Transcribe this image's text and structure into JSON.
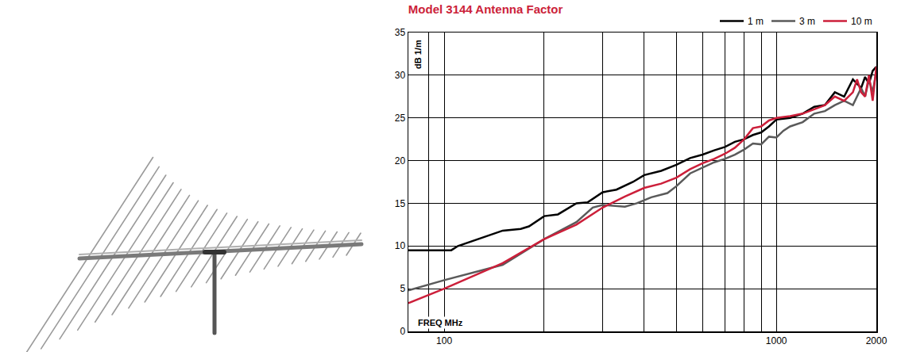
{
  "chart_data": {
    "type": "line",
    "title": "Model 3144 Antenna Factor",
    "y_label": "dB 1/m",
    "x_label": "FREQ MHz",
    "log": "x",
    "grid": true,
    "legend": "top right",
    "xlim": [
      78,
      2000
    ],
    "xticks": [
      100,
      1000,
      2000
    ],
    "xminor_ticks": [
      90,
      200,
      300,
      400,
      500,
      600,
      700,
      800,
      900
    ],
    "ylim": [
      0,
      35
    ],
    "yticks": [
      0,
      5,
      10,
      15,
      20,
      25,
      30,
      35
    ],
    "series": [
      {
        "name": "1 m",
        "color": "#000000",
        "x": [
          78,
          90,
          105,
          110,
          130,
          150,
          170,
          180,
          200,
          220,
          250,
          270,
          300,
          330,
          370,
          400,
          450,
          500,
          550,
          600,
          650,
          700,
          750,
          800,
          850,
          900,
          950,
          1000,
          1100,
          1200,
          1300,
          1400,
          1500,
          1600,
          1700,
          1800,
          1850,
          1900,
          1950,
          2000
        ],
        "values": [
          9.5,
          9.5,
          9.5,
          10,
          11,
          11.8,
          12,
          12.3,
          13.5,
          13.7,
          15,
          15.1,
          16.3,
          16.6,
          17.5,
          18.3,
          18.8,
          19.5,
          20.3,
          20.7,
          21.2,
          21.6,
          22.2,
          22.5,
          23,
          23.3,
          24,
          24.8,
          25,
          25.5,
          26.3,
          26.5,
          28,
          27.5,
          29.5,
          28.5,
          29.8,
          29,
          30.5,
          31
        ]
      },
      {
        "name": "3 m",
        "color": "#5a5a5a",
        "x": [
          78,
          100,
          150,
          200,
          250,
          280,
          300,
          350,
          380,
          420,
          470,
          500,
          550,
          600,
          650,
          700,
          750,
          800,
          850,
          900,
          950,
          1000,
          1050,
          1100,
          1200,
          1300,
          1400,
          1500,
          1600,
          1700,
          1800,
          1850,
          1900,
          1950,
          2000
        ],
        "values": [
          4.8,
          6,
          7.8,
          10.8,
          12.8,
          14.5,
          14.8,
          14.6,
          15,
          15.7,
          16.2,
          17,
          18.5,
          19.2,
          19.8,
          20.2,
          20.7,
          21.3,
          22,
          21.9,
          22.8,
          22.7,
          23.5,
          24,
          24.5,
          25.5,
          25.8,
          26.5,
          27,
          26.5,
          28.5,
          27.5,
          29.5,
          28,
          30.5
        ]
      },
      {
        "name": "10 m",
        "color": "#cc1f3a",
        "x": [
          78,
          100,
          150,
          200,
          250,
          300,
          350,
          400,
          450,
          500,
          550,
          600,
          650,
          700,
          750,
          800,
          850,
          900,
          950,
          1000,
          1100,
          1200,
          1300,
          1400,
          1500,
          1600,
          1700,
          1750,
          1800,
          1850,
          1900,
          1950,
          2000
        ],
        "values": [
          3.3,
          5,
          8,
          10.8,
          12.5,
          14.5,
          15.8,
          16.8,
          17.3,
          18,
          19,
          19.7,
          20.2,
          20.8,
          21.5,
          22.5,
          23.8,
          24,
          24.7,
          25,
          25.2,
          25.5,
          26,
          26.5,
          27.5,
          27,
          28,
          29.5,
          28,
          27.5,
          30,
          27,
          31
        ]
      }
    ]
  }
}
